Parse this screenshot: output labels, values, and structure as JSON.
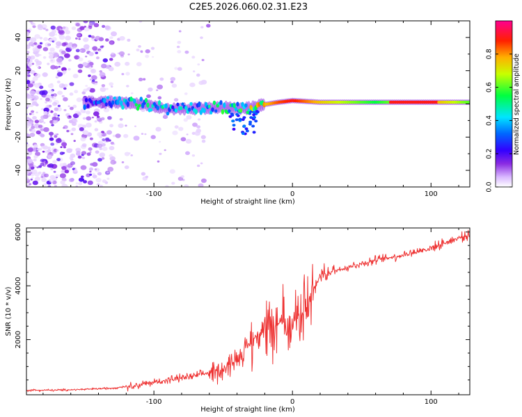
{
  "title": "C2E5.2026.060.02.31.E23",
  "chart_data": [
    {
      "type": "heatmap",
      "name": "spectrogram",
      "xlabel": "Height of straight line (km)",
      "ylabel": "Frequency (Hz)",
      "xlim": [
        -192,
        128
      ],
      "ylim": [
        -50,
        50
      ],
      "xticks": [
        -100,
        0,
        100
      ],
      "xtick_labels": [
        "-100",
        "0",
        "100"
      ],
      "yticks": [
        -40,
        -20,
        0,
        20,
        40
      ],
      "ytick_labels": [
        "-40",
        "-20",
        "0",
        "20",
        "40"
      ],
      "colorbar": {
        "label": "Normalized spectral amplitude",
        "range": [
          0,
          1
        ],
        "ticks": [
          0,
          0.2,
          0.4,
          0.6,
          0.8
        ],
        "tick_labels": [
          "0.0",
          "0.2",
          "0.4",
          "0.6",
          "0.8"
        ],
        "colors": [
          "#ffffff",
          "#c9a0ff",
          "#7a00ff",
          "#0000ff",
          "#00ffff",
          "#00ff00",
          "#ffff00",
          "#ff8000",
          "#ff0000",
          "#ff0080"
        ]
      },
      "ridge": {
        "x": [
          -150,
          -130,
          -110,
          -90,
          -70,
          -50,
          -35,
          -25,
          -10,
          0,
          20,
          60,
          100,
          128
        ],
        "center_freq_hz": [
          1,
          1,
          0,
          -3,
          -3,
          -2,
          -3,
          -1,
          1,
          2,
          1,
          1,
          1,
          1
        ],
        "amplitude": [
          0.25,
          0.35,
          0.45,
          0.4,
          0.4,
          0.45,
          0.5,
          0.7,
          0.85,
          0.9,
          0.75,
          0.55,
          0.8,
          0.6
        ]
      },
      "noise_region_x": [
        -192,
        -130
      ]
    },
    {
      "type": "line",
      "name": "snr",
      "xlabel": "Height of straight line (km)",
      "ylabel": "SNR (10 * v/v)",
      "xlim": [
        -192,
        128
      ],
      "ylim": [
        -50,
        6150
      ],
      "xticks": [
        -100,
        0,
        100
      ],
      "xtick_labels": [
        "-100",
        "0",
        "100"
      ],
      "yticks": [
        2000,
        4000,
        6000
      ],
      "ytick_labels": [
        "2000",
        "4000",
        "6000"
      ],
      "color": "#ee3333",
      "series": [
        {
          "name": "SNR",
          "x": [
            -192,
            -170,
            -150,
            -130,
            -110,
            -90,
            -70,
            -50,
            -40,
            -30,
            -20,
            -10,
            0,
            10,
            20,
            40,
            60,
            80,
            100,
            115,
            128
          ],
          "values": [
            120,
            120,
            150,
            200,
            320,
            500,
            650,
            900,
            1300,
            1900,
            2500,
            2600,
            2700,
            3200,
            4400,
            4700,
            4950,
            5150,
            5400,
            5700,
            5900
          ]
        }
      ]
    }
  ]
}
